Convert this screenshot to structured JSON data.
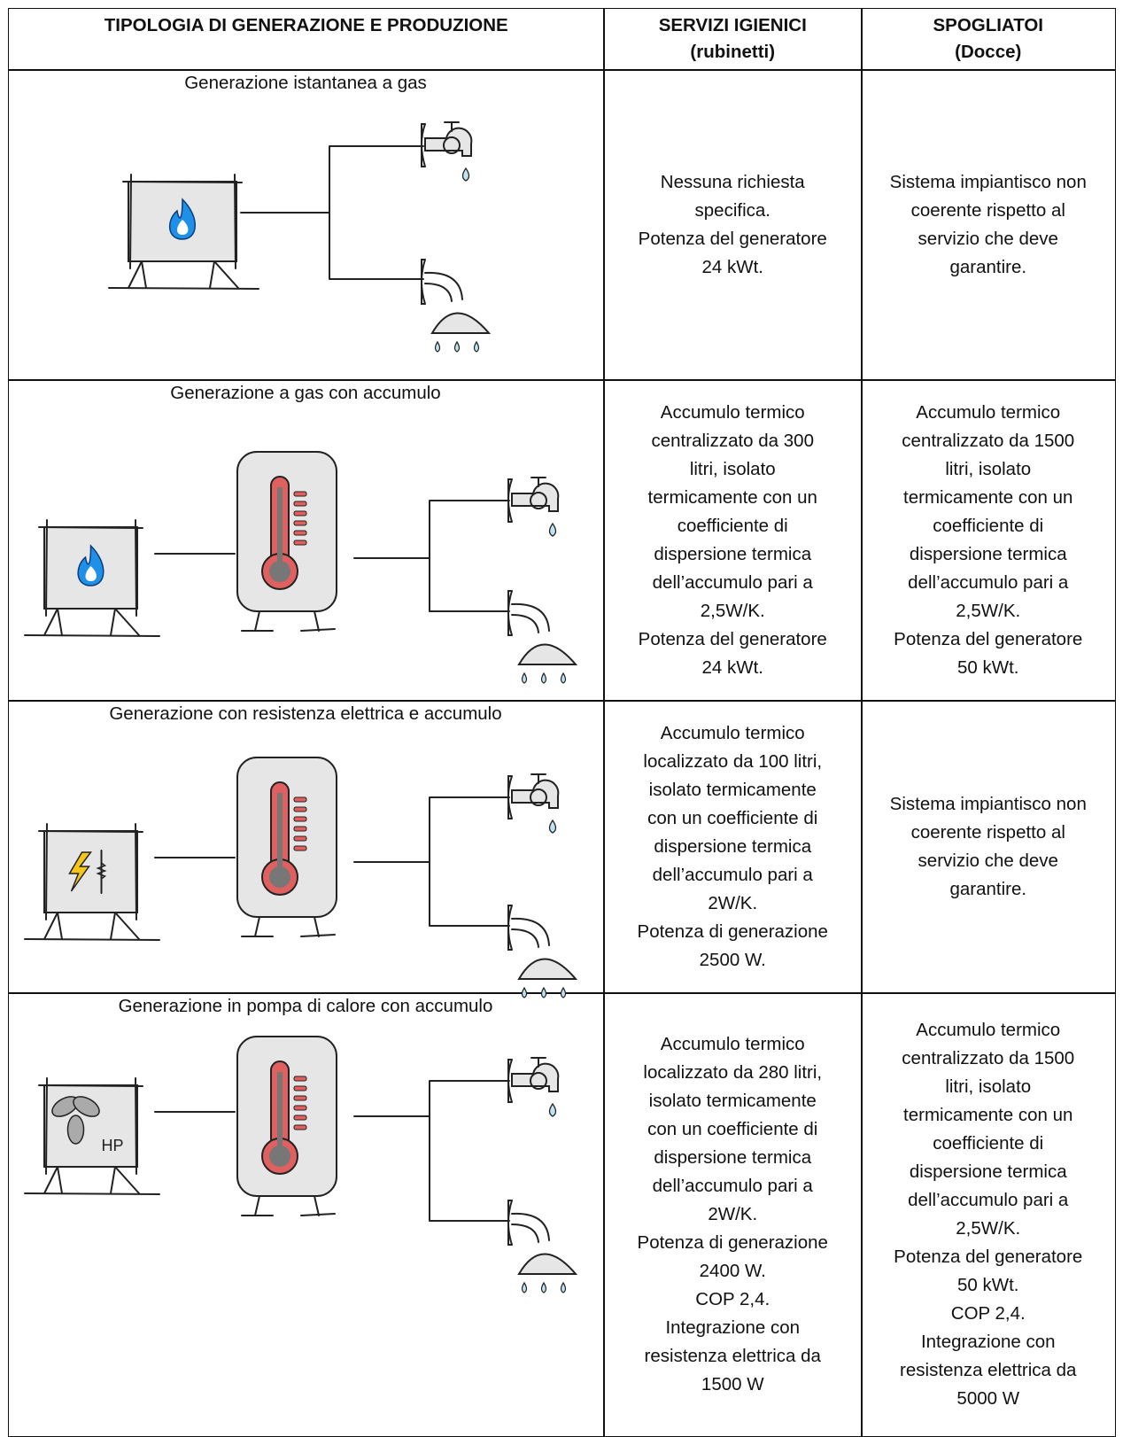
{
  "header": {
    "col0": "TIPOLOGIA DI GENERAZIONE E PRODUZIONE",
    "col1": [
      "SERVIZI IGIENICI",
      "(rubinetti)"
    ],
    "col2": [
      "SPOGLIATOI",
      "(Docce)"
    ]
  },
  "rows": [
    {
      "label": "Generazione istantanea a gas",
      "col1": [
        "Nessuna richiesta",
        "specifica.",
        "Potenza del generatore",
        "24 kWt."
      ],
      "col2": [
        "Sistema impiantisco non",
        "coerente rispetto al",
        "servizio che deve",
        "garantire."
      ]
    },
    {
      "label": "Generazione a gas con accumulo",
      "col1": [
        "Accumulo termico",
        "centralizzato da 300",
        "litri, isolato",
        "termicamente con un",
        "coefficiente di",
        "dispersione termica",
        "dell’accumulo pari a",
        "2,5W/K.",
        "Potenza del generatore",
        "24 kWt."
      ],
      "col2": [
        "Accumulo termico",
        "centralizzato da 1500",
        "litri, isolato",
        "termicamente con un",
        "coefficiente di",
        "dispersione termica",
        "dell’accumulo pari a",
        "2,5W/K.",
        "Potenza del generatore",
        "50 kWt."
      ]
    },
    {
      "label": "Generazione con resistenza elettrica e accumulo",
      "col1": [
        "Accumulo termico",
        "localizzato da 100 litri,",
        "isolato termicamente",
        "con un coefficiente di",
        "dispersione termica",
        "dell’accumulo pari a",
        "2W/K.",
        "Potenza di generazione",
        "2500 W."
      ],
      "col2": [
        "Sistema impiantisco non",
        "coerente rispetto al",
        "servizio che deve",
        "garantire."
      ]
    },
    {
      "label": "Generazione in pompa di calore con accumulo",
      "icon_label": "HP",
      "col1": [
        "Accumulo termico",
        "localizzato da 280 litri,",
        "isolato termicamente",
        "con un coefficiente di",
        "dispersione termica",
        "dell’accumulo pari a",
        "2W/K.",
        "Potenza di generazione",
        "2400 W.",
        "COP 2,4.",
        "Integrazione con",
        "resistenza elettrica da",
        "1500 W"
      ],
      "col2": [
        "Accumulo termico",
        "centralizzato da 1500",
        "litri, isolato",
        "termicamente con un",
        "coefficiente di",
        "dispersione termica",
        "dell’accumulo pari a",
        "2,5W/K.",
        "Potenza del generatore",
        "50 kWt.",
        "COP 2,4.",
        "Integrazione con",
        "resistenza elettrica da",
        "5000 W"
      ]
    }
  ]
}
